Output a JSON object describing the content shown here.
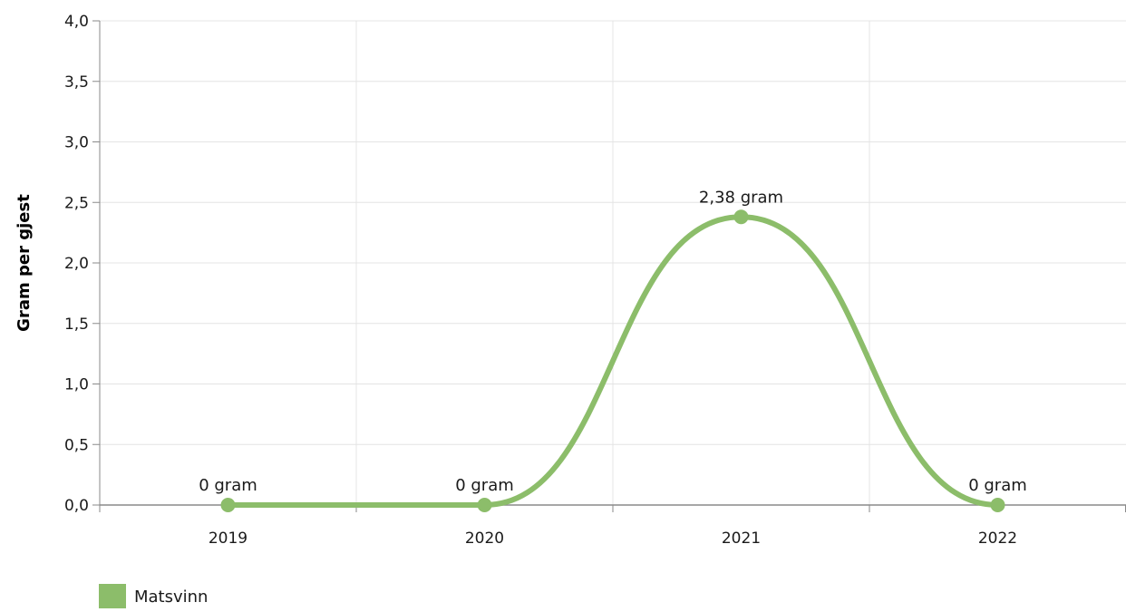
{
  "chart_data": {
    "type": "line",
    "categories": [
      "2019",
      "2020",
      "2021",
      "2022"
    ],
    "series": [
      {
        "name": "Matsvinn",
        "values": [
          0,
          0,
          2.38,
          0
        ],
        "data_labels": [
          "0 gram",
          "0 gram",
          "2,38 gram",
          "0 gram"
        ],
        "color": "#8cbd6a"
      }
    ],
    "title": "",
    "xlabel": "",
    "ylabel": "Gram per gjest",
    "ylim": [
      0,
      4
    ],
    "yticks": [
      "0,0",
      "0,5",
      "1,0",
      "1,5",
      "2,0",
      "2,5",
      "3,0",
      "3,5",
      "4,0"
    ],
    "smooth": true,
    "grid": true,
    "legend_position": "bottom-left"
  }
}
